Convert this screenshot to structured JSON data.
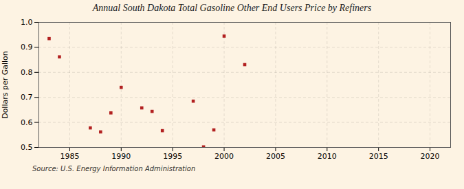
{
  "chart_data": {
    "type": "scatter",
    "title": "Annual South Dakota Total Gasoline Other End Users Price by Refiners",
    "ylabel": "Dollars per Gallon",
    "caption": "Source: U.S. Energy Information Administration",
    "x": [
      1983,
      1984,
      1987,
      1988,
      1989,
      1990,
      1992,
      1993,
      1994,
      1997,
      1998,
      1999,
      2000,
      2002
    ],
    "values": [
      0.935,
      0.862,
      0.578,
      0.562,
      0.638,
      0.74,
      0.658,
      0.644,
      0.567,
      0.685,
      0.502,
      0.57,
      0.945,
      0.831
    ],
    "color": "#b22020",
    "marker": "square",
    "xlim": [
      1982,
      2022
    ],
    "ylim": [
      0.5,
      1.0
    ],
    "xticks": [
      1985,
      1990,
      1995,
      2000,
      2005,
      2010,
      2015,
      2020
    ],
    "yticks": [
      0.5,
      0.6,
      0.7,
      0.8,
      0.9,
      {
        "value": 1.0,
        "label": "1.0"
      }
    ],
    "grid": true
  }
}
